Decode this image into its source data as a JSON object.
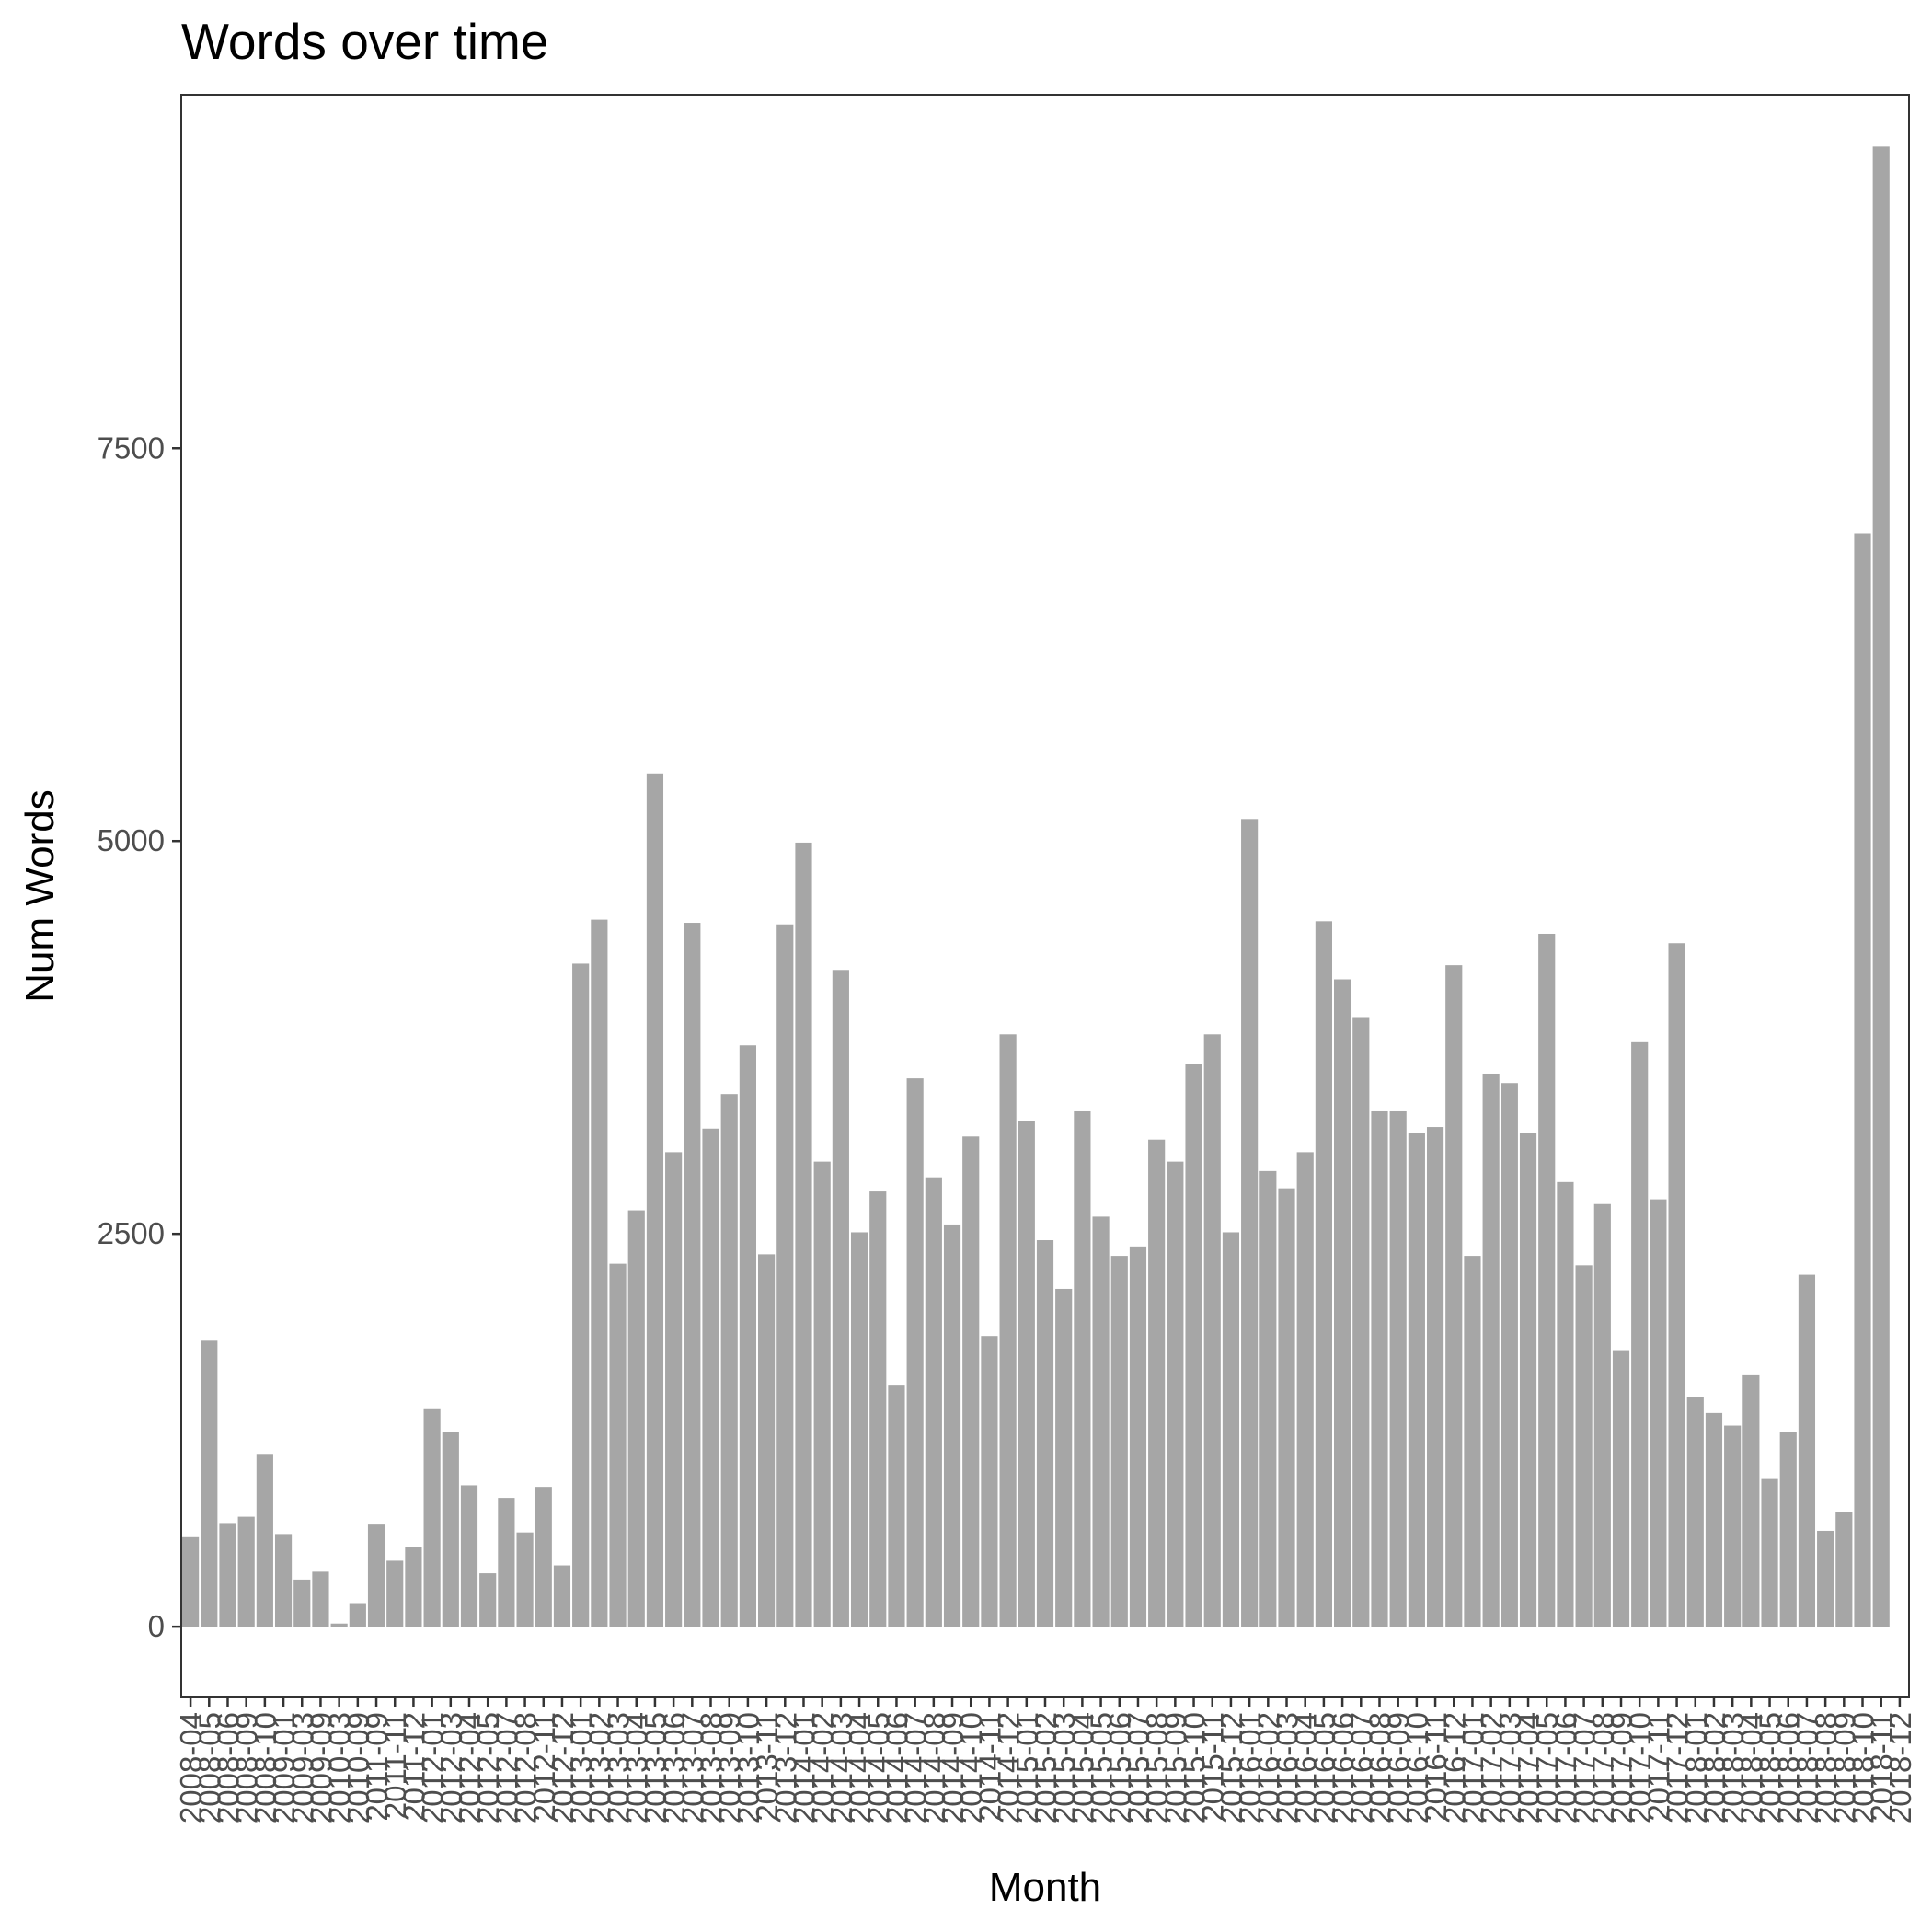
{
  "chart_data": {
    "type": "bar",
    "title": "Words over time",
    "xlabel": "Month",
    "ylabel": "Num Words",
    "ylim": [
      -450,
      9750
    ],
    "yticks": [
      0,
      2500,
      5000,
      7500
    ],
    "ytick_labels": [
      "0",
      "2500",
      "5000",
      "7500"
    ],
    "grid": false,
    "legend": "none",
    "bar_color": "#a6a6a6",
    "categories": [
      "2008-04",
      "2008-05",
      "2008-06",
      "2008-09",
      "2008-10",
      "2009-01",
      "2009-03",
      "2009-09",
      "2010-03",
      "2010-09",
      "2011-09",
      "2011-11",
      "2011-12",
      "2012-01",
      "2012-03",
      "2012-04",
      "2012-05",
      "2012-07",
      "2012-08",
      "2012-11",
      "2012-12",
      "2013-01",
      "2013-02",
      "2013-03",
      "2013-04",
      "2013-05",
      "2013-06",
      "2013-07",
      "2013-08",
      "2013-09",
      "2013-10",
      "2013-11",
      "2013-12",
      "2014-01",
      "2014-02",
      "2014-03",
      "2014-04",
      "2014-05",
      "2014-06",
      "2014-07",
      "2014-08",
      "2014-09",
      "2014-10",
      "2014-11",
      "2014-12",
      "2015-01",
      "2015-02",
      "2015-03",
      "2015-04",
      "2015-05",
      "2015-06",
      "2015-07",
      "2015-08",
      "2015-09",
      "2015-10",
      "2015-11",
      "2015-12",
      "2016-01",
      "2016-02",
      "2016-03",
      "2016-04",
      "2016-05",
      "2016-06",
      "2016-07",
      "2016-08",
      "2016-09",
      "2016-10",
      "2016-11",
      "2016-12",
      "2017-01",
      "2017-02",
      "2017-03",
      "2017-04",
      "2017-05",
      "2017-06",
      "2017-07",
      "2017-08",
      "2017-09",
      "2017-10",
      "2017-11",
      "2017-12",
      "2018-01",
      "2018-02",
      "2018-03",
      "2018-04",
      "2018-05",
      "2018-06",
      "2018-07",
      "2018-08",
      "2018-09",
      "2018-10",
      "2018-11",
      "2018-12"
    ],
    "values": [
      570,
      1820,
      660,
      700,
      1100,
      590,
      300,
      350,
      20,
      150,
      650,
      420,
      510,
      1390,
      1240,
      900,
      340,
      820,
      600,
      890,
      390,
      4220,
      4500,
      2310,
      2650,
      5430,
      3020,
      4480,
      3170,
      3390,
      3700,
      2370,
      4470,
      4990,
      2960,
      4180,
      2510,
      2770,
      1540,
      3490,
      2860,
      2560,
      3120,
      1850,
      3770,
      3220,
      2460,
      2150,
      3280,
      2610,
      2360,
      2420,
      3100,
      2960,
      3580,
      3770,
      2510,
      5140,
      2900,
      2790,
      3020,
      4490,
      4120,
      3880,
      3280,
      3280,
      3140,
      3180,
      4210,
      2360,
      3520,
      3460,
      3140,
      4410,
      2830,
      2300,
      2690,
      1760,
      3720,
      2720,
      4350,
      1460,
      1360,
      1280,
      1600,
      940,
      1240,
      2240,
      610,
      730,
      6960,
      9420,
      0
    ]
  }
}
